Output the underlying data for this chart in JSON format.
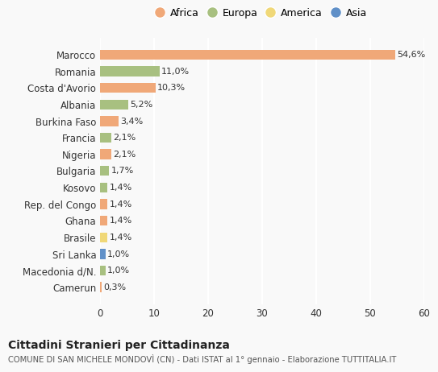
{
  "categories": [
    "Camerun",
    "Macedonia d/N.",
    "Sri Lanka",
    "Brasile",
    "Ghana",
    "Rep. del Congo",
    "Kosovo",
    "Bulgaria",
    "Nigeria",
    "Francia",
    "Burkina Faso",
    "Albania",
    "Costa d'Avorio",
    "Romania",
    "Marocco"
  ],
  "values": [
    0.3,
    1.0,
    1.0,
    1.4,
    1.4,
    1.4,
    1.4,
    1.7,
    2.1,
    2.1,
    3.4,
    5.2,
    10.3,
    11.0,
    54.6
  ],
  "labels": [
    "0,3%",
    "1,0%",
    "1,0%",
    "1,4%",
    "1,4%",
    "1,4%",
    "1,4%",
    "1,7%",
    "2,1%",
    "2,1%",
    "3,4%",
    "5,2%",
    "10,3%",
    "11,0%",
    "54,6%"
  ],
  "continents": [
    "Africa",
    "Europa",
    "Asia",
    "America",
    "Africa",
    "Africa",
    "Europa",
    "Europa",
    "Africa",
    "Europa",
    "Africa",
    "Europa",
    "Africa",
    "Europa",
    "Africa"
  ],
  "continent_colors": {
    "Africa": "#F0A878",
    "Europa": "#A8C080",
    "America": "#F0D878",
    "Asia": "#6090C8"
  },
  "legend_order": [
    "Africa",
    "Europa",
    "America",
    "Asia"
  ],
  "title": "Cittadini Stranieri per Cittadinanza",
  "subtitle": "COMUNE DI SAN MICHELE MONDOVÌ (CN) - Dati ISTAT al 1° gennaio - Elaborazione TUTTITALIA.IT",
  "xlim": [
    0,
    60
  ],
  "xticks": [
    0,
    10,
    20,
    30,
    40,
    50,
    60
  ],
  "background_color": "#f9f9f9",
  "grid_color": "#ffffff"
}
